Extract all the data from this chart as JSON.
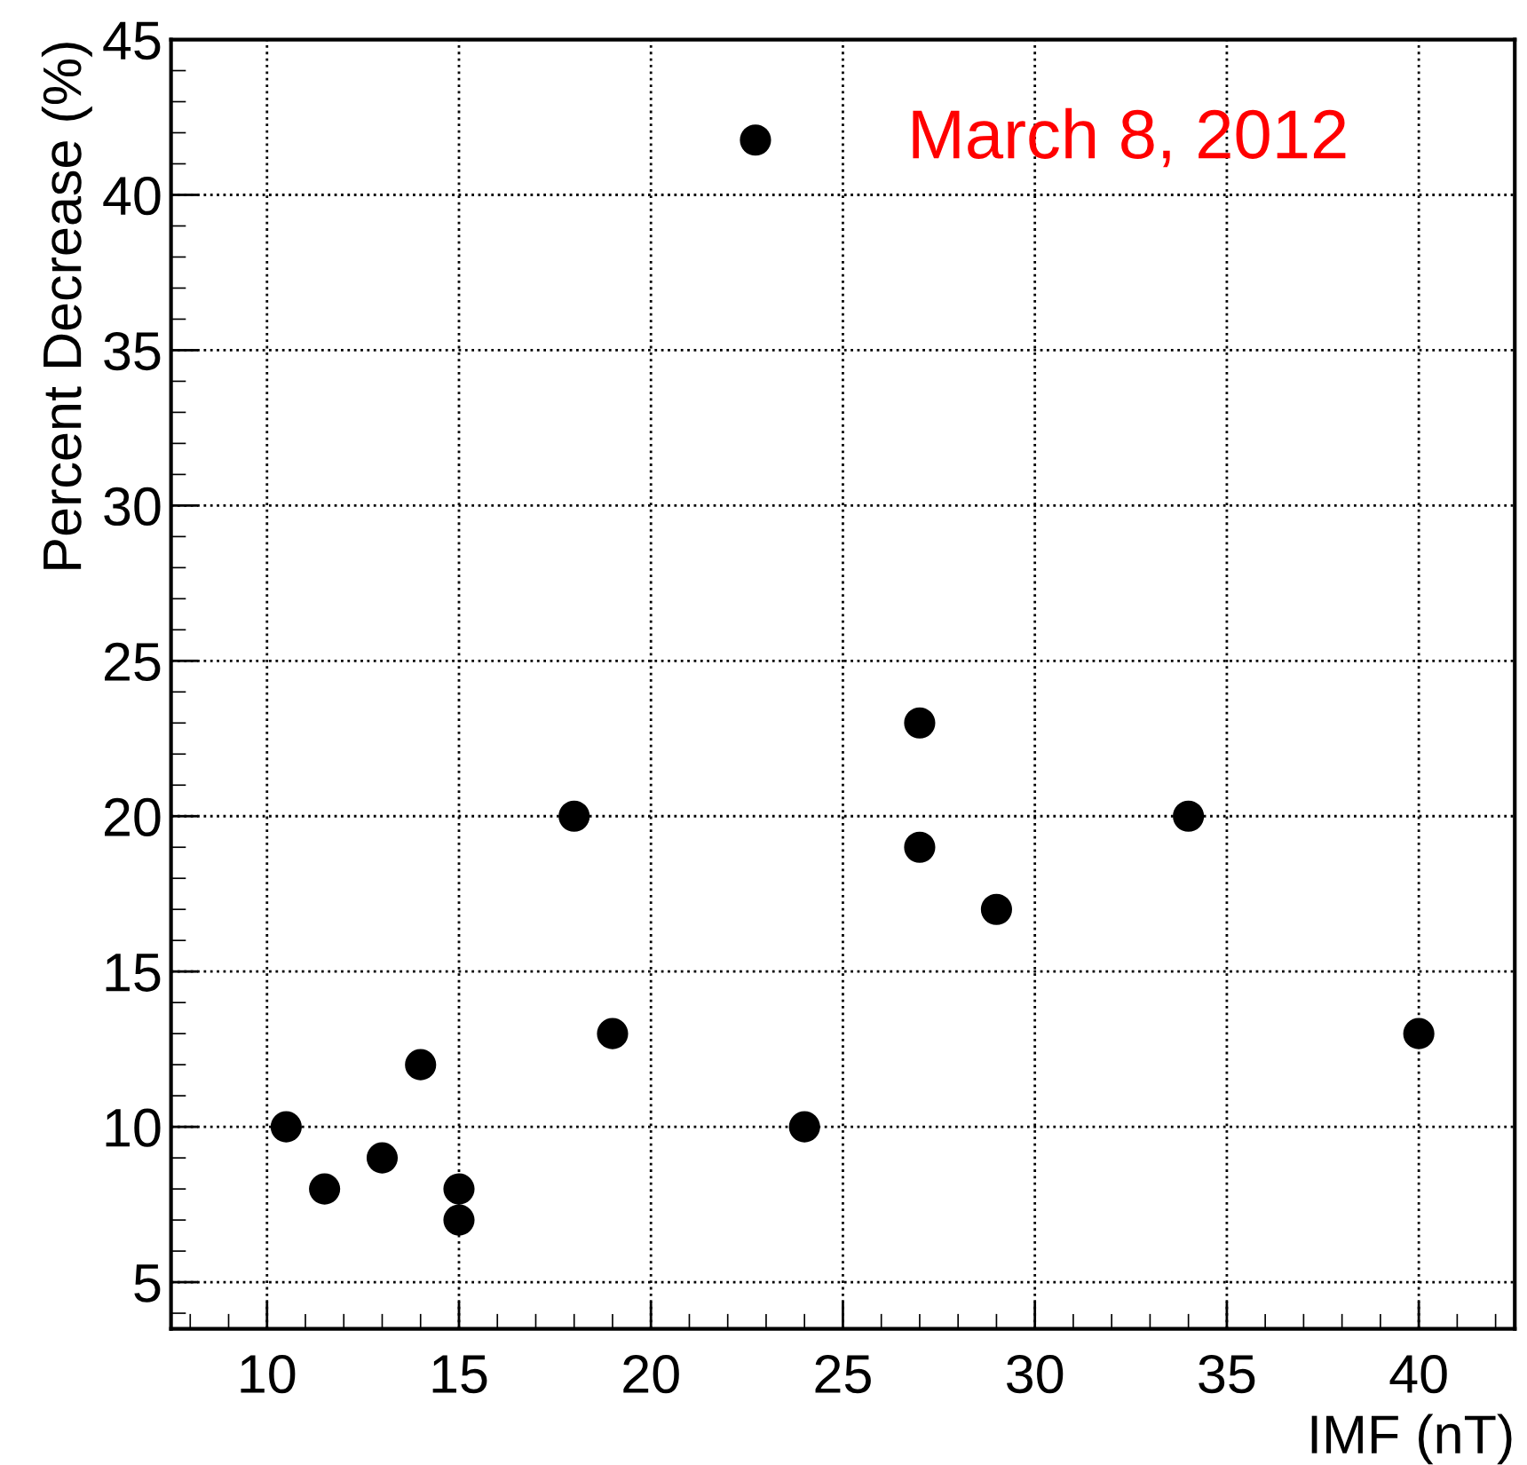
{
  "chart_data": {
    "type": "scatter",
    "xlabel": "IMF (nT)",
    "ylabel": "Percent Decrease (%)",
    "x": [
      10.5,
      11.5,
      13,
      14,
      15,
      15,
      18,
      19,
      24,
      27,
      27,
      29,
      34,
      40
    ],
    "series": [
      {
        "name": "March 8, 2012",
        "color": "#000000",
        "values": [
          10,
          8,
          9,
          12,
          8,
          7,
          20,
          13,
          10,
          23,
          19,
          17,
          20,
          13
        ]
      }
    ],
    "xlim": [
      7.5,
      42.5
    ],
    "xticks": [
      10,
      15,
      20,
      25,
      30,
      35,
      40
    ],
    "ylim": [
      3.5,
      45
    ],
    "yticks": [
      5,
      10,
      15,
      20,
      25,
      30,
      35,
      40,
      45
    ],
    "grid": true,
    "legend": "top",
    "marker": "circle"
  }
}
